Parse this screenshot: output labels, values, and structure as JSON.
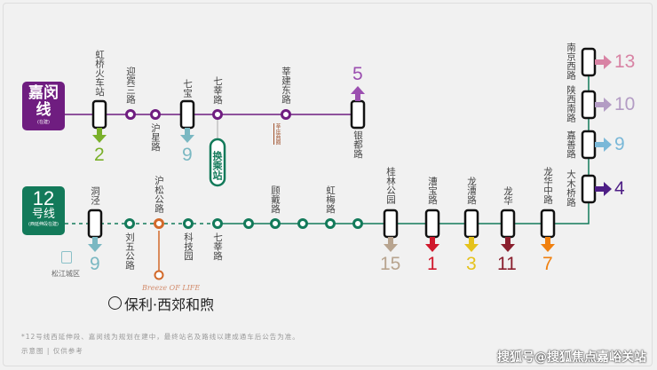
{
  "jiamin": {
    "name": "嘉闵线",
    "sub": "(在建)",
    "color": "#6f1d80",
    "stations": [
      {
        "name": "虹桥火车站",
        "type": "transfer",
        "transfer": "2",
        "tcolor": "#7ab02a",
        "dir": "down"
      },
      {
        "name": "迎宾三路",
        "type": "stop"
      },
      {
        "name": "沪星路",
        "type": "stop"
      },
      {
        "name": "七宝",
        "type": "transfer",
        "transfer": "9",
        "tcolor": "#7ab8c2",
        "dir": "down"
      },
      {
        "name": "七莘路",
        "type": "stop"
      },
      {
        "name": "莘建东路",
        "type": "stop",
        "note": "莘庄商圈"
      },
      {
        "name": "银都路",
        "type": "transfer",
        "transfer": "5",
        "tcolor": "#9b4fb0",
        "dir": "up"
      }
    ]
  },
  "interchange": {
    "label": "换乘站"
  },
  "line12": {
    "name_num": "12",
    "name": "号线",
    "sub": "(西延伸段在建)",
    "color": "#137a5a",
    "stations": [
      {
        "name": "洞泾",
        "type": "transfer",
        "transfer": "9",
        "tcolor": "#7ab8c2",
        "dir": "down"
      },
      {
        "name": "刘五公路",
        "type": "stop"
      },
      {
        "name": "沪松公路",
        "type": "highlight"
      },
      {
        "name": "科技园",
        "type": "stop"
      },
      {
        "name": "七莘路",
        "type": "stop"
      },
      {
        "name": "",
        "type": "stop"
      },
      {
        "name": "顾戴路",
        "type": "stop"
      },
      {
        "name": "",
        "type": "stop"
      },
      {
        "name": "虹梅路",
        "type": "stop"
      },
      {
        "name": "",
        "type": "stop"
      },
      {
        "name": "桂林公园",
        "type": "transfer",
        "transfer": "15",
        "tcolor": "#b8a48f",
        "dir": "down"
      },
      {
        "name": "漕宝路",
        "type": "transfer",
        "transfer": "1",
        "tcolor": "#d0182c",
        "dir": "down"
      },
      {
        "name": "龙漕路",
        "type": "transfer",
        "transfer": "3",
        "tcolor": "#e5c21c",
        "dir": "down"
      },
      {
        "name": "龙华",
        "type": "transfer",
        "transfer": "11",
        "tcolor": "#8a1f2e",
        "dir": "down"
      },
      {
        "name": "龙华中路",
        "type": "transfer",
        "transfer": "7",
        "tcolor": "#f0800f",
        "dir": "down"
      },
      {
        "name": "大木桥路",
        "type": "transfer",
        "transfer": "4",
        "tcolor": "#4e1f86",
        "dir": "right"
      },
      {
        "name": "嘉善路",
        "type": "transfer",
        "transfer": "9",
        "tcolor": "#7ab8d8",
        "dir": "right"
      },
      {
        "name": "陕西南路",
        "type": "transfer",
        "transfer": "10",
        "tcolor": "#b39cc4",
        "dir": "right"
      },
      {
        "name": "南京西路",
        "type": "transfer",
        "transfer": "13",
        "tcolor": "#d883a4",
        "dir": "right"
      }
    ]
  },
  "district": "松江城区",
  "project": {
    "logo_script": "Breeze OF LIFE",
    "name": "保利·西郊和煦",
    "color": "#d2692a"
  },
  "footnote": "*12号线西延伸段、嘉闵线为规划在建中，最终站名及路线以建成通车后公告为准。",
  "disclaimer": "示意图 | 仅供参考",
  "watermark": "搜狐号@搜狐焦点嘉峪关站"
}
